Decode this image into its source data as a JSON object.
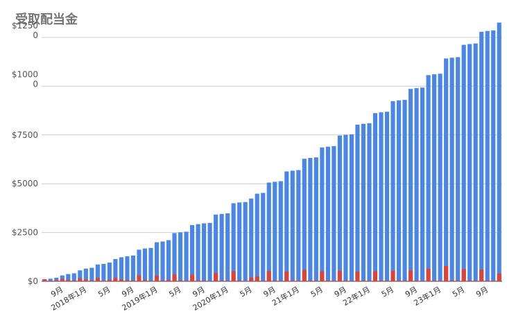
{
  "chart_data": {
    "type": "bar",
    "stacked": true,
    "title": "受取配当金",
    "xlabel": "",
    "ylabel": "",
    "ylim": [
      0,
      125000
    ],
    "yticks": [
      {
        "value": 0,
        "label": "$0"
      },
      {
        "value": 25000,
        "label": "$2500"
      },
      {
        "value": 50000,
        "label": "$5000"
      },
      {
        "value": 75000,
        "label": "$7500"
      },
      {
        "value": 100000,
        "label": "$1000\n0"
      },
      {
        "value": 125000,
        "label": "$1250\n0"
      }
    ],
    "xticks": [
      {
        "index": 3,
        "label": "9月"
      },
      {
        "index": 7,
        "label": "2018年1月"
      },
      {
        "index": 11,
        "label": "5月"
      },
      {
        "index": 15,
        "label": "9月"
      },
      {
        "index": 19,
        "label": "2019年1月"
      },
      {
        "index": 23,
        "label": "5月"
      },
      {
        "index": 27,
        "label": "9月"
      },
      {
        "index": 31,
        "label": "2020年1月"
      },
      {
        "index": 35,
        "label": "5月"
      },
      {
        "index": 39,
        "label": "9月"
      },
      {
        "index": 43,
        "label": "21年1月"
      },
      {
        "index": 47,
        "label": "5月"
      },
      {
        "index": 51,
        "label": "9月"
      },
      {
        "index": 55,
        "label": "22年1月"
      },
      {
        "index": 59,
        "label": "5月"
      },
      {
        "index": 63,
        "label": "9月"
      },
      {
        "index": 67,
        "label": "23年1月"
      },
      {
        "index": 71,
        "label": "5月"
      },
      {
        "index": 75,
        "label": "9月"
      }
    ],
    "colors": {
      "monthly": "#db4437",
      "cumulative": "#4a86e8",
      "grid": "#cccccc"
    },
    "series": [
      {
        "key": "monthly",
        "values": [
          1000,
          300,
          500,
          1200,
          700,
          400,
          1500,
          900,
          400,
          1700,
          300,
          700,
          1800,
          900,
          500,
          400,
          3000,
          600,
          300,
          2900,
          400,
          700,
          3600,
          400,
          300,
          3400,
          500,
          400,
          200,
          4300,
          300,
          300,
          5200,
          400,
          200,
          1800,
          2500,
          400,
          5300,
          400,
          300,
          5000,
          400,
          300,
          5800,
          400,
          300,
          5100,
          400,
          300,
          5400,
          400,
          200,
          5000,
          400,
          300,
          5200,
          400,
          300,
          5400,
          400,
          300,
          5600,
          400,
          300,
          6400,
          400,
          300,
          7800,
          400,
          300,
          6300,
          400,
          300,
          6000,
          400,
          300,
          4000
        ]
      },
      {
        "key": "cumulative",
        "values": [
          1000,
          1300,
          1800,
          3000,
          3700,
          4100,
          5600,
          6500,
          6900,
          8600,
          8900,
          9600,
          11400,
          12300,
          12800,
          13200,
          16200,
          16800,
          17100,
          20000,
          20400,
          21100,
          24700,
          25100,
          25400,
          28800,
          29300,
          29700,
          29900,
          34200,
          34500,
          34800,
          40000,
          40400,
          40600,
          42400,
          44900,
          45300,
          50600,
          51000,
          51300,
          56300,
          56700,
          57000,
          62800,
          63200,
          63500,
          68600,
          69000,
          69300,
          74700,
          75100,
          75300,
          80300,
          80700,
          81000,
          86200,
          86600,
          86900,
          92300,
          92700,
          93000,
          98600,
          99000,
          99300,
          105700,
          106100,
          106400,
          114200,
          114600,
          114900,
          121200,
          121600,
          121900,
          127900,
          128300,
          128600,
          132600
        ]
      }
    ]
  }
}
